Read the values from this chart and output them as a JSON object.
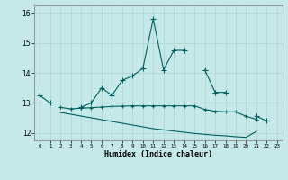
{
  "xlabel": "Humidex (Indice chaleur)",
  "background_color": "#c5e8e8",
  "grid_color": "#b8d8d8",
  "line_color": "#006060",
  "x_values": [
    0,
    1,
    2,
    3,
    4,
    5,
    6,
    7,
    8,
    9,
    10,
    11,
    12,
    13,
    14,
    15,
    16,
    17,
    18,
    19,
    20,
    21,
    22,
    23
  ],
  "line1_y": [
    13.25,
    13.0,
    null,
    null,
    12.85,
    13.0,
    13.5,
    13.25,
    13.75,
    13.9,
    14.15,
    15.8,
    14.1,
    14.75,
    14.75,
    null,
    14.1,
    13.35,
    13.35,
    null,
    null,
    12.55,
    12.4,
    null
  ],
  "line2_y": [
    null,
    null,
    12.85,
    12.8,
    12.82,
    12.84,
    12.86,
    12.88,
    12.89,
    12.9,
    12.9,
    12.9,
    12.9,
    12.9,
    12.9,
    12.9,
    12.78,
    12.72,
    12.7,
    12.7,
    12.55,
    12.45,
    null,
    null
  ],
  "line3_y": [
    null,
    null,
    12.68,
    12.62,
    12.56,
    12.5,
    12.44,
    12.38,
    12.32,
    12.26,
    12.2,
    12.14,
    12.1,
    12.06,
    12.02,
    11.98,
    11.95,
    11.92,
    11.9,
    11.87,
    11.85,
    12.05,
    null,
    null
  ],
  "ylim": [
    11.75,
    16.25
  ],
  "yticks": [
    12,
    13,
    14,
    15,
    16
  ],
  "xlim": [
    -0.5,
    23.5
  ],
  "xticks": [
    0,
    1,
    2,
    3,
    4,
    5,
    6,
    7,
    8,
    9,
    10,
    11,
    12,
    13,
    14,
    15,
    16,
    17,
    18,
    19,
    20,
    21,
    22,
    23
  ]
}
